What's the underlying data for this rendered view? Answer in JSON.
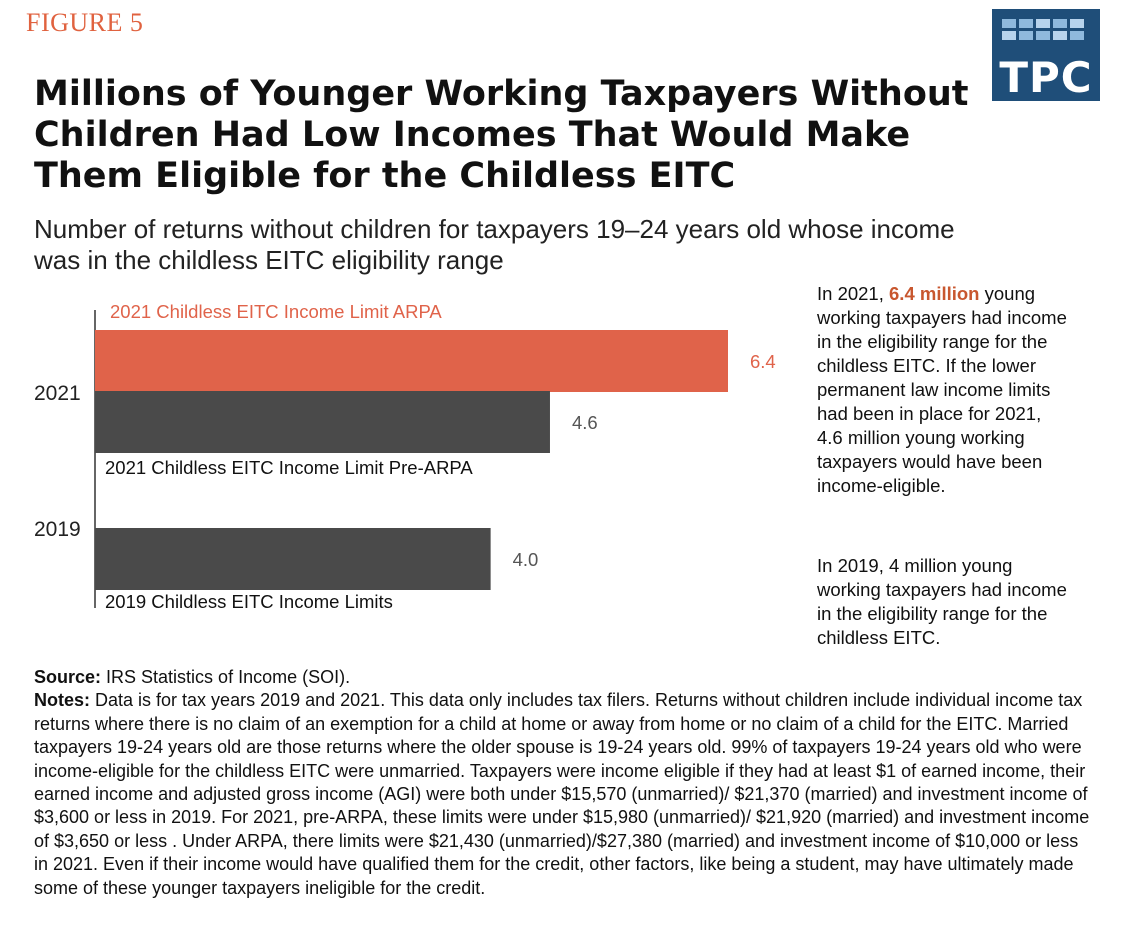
{
  "figure_label": "FIGURE 5",
  "logo": {
    "text": "TPC",
    "bg_color": "#1f4e79"
  },
  "title": "Millions of Younger Working Taxpayers Without Children Had Low Incomes That Would Make Them Eligible for the Childless EITC",
  "subtitle": "Number of returns without children for taxpayers 19–24 years old whose income was in the childless EITC eligibility range",
  "chart_data": {
    "type": "bar",
    "orientation": "horizontal",
    "categories": [
      "2021",
      "2019"
    ],
    "bars": [
      {
        "category": "2021",
        "label": "2021 Childless EITC Income Limit ARPA",
        "value": 6.4,
        "color": "#e0634a",
        "label_color": "#e0634a",
        "value_label": "6.4"
      },
      {
        "category": "2021",
        "label": "2021 Childless EITC Income Limit Pre-ARPA",
        "value": 4.6,
        "color": "#4a4a4a",
        "label_color": "#111111",
        "value_label": "4.6"
      },
      {
        "category": "2019",
        "label": "2019 Childless EITC Income Limits",
        "value": 4.0,
        "color": "#4a4a4a",
        "label_color": "#111111",
        "value_label": "4.0"
      }
    ],
    "xlim": [
      0,
      6.4
    ],
    "units": "millions of returns"
  },
  "annotations": {
    "a2021_pre": "In 2021, ",
    "a2021_highlight": "6.4 million",
    "a2021_post": " young working taxpayers had income in the eligibility range for the childless EITC. If the lower permanent law income limits had been in place for 2021, 4.6 million young working taxpayers would have been income-eligible.",
    "a2019": "In 2019, 4 million young working taxpayers had income in the eligibility range for the childless EITC."
  },
  "source_label": "Source:",
  "source_text": " IRS Statistics of Income (SOI).",
  "notes_label": "Notes:",
  "notes_text": "  Data is for tax years 2019 and 2021. This data only includes tax filers. Returns without children include individual income tax returns where there is no claim of an exemption for a child at home or away from home or no claim of a child for the EITC. Married taxpayers 19-24 years old are those returns where the older spouse is 19-24 years old. 99% of taxpayers 19-24 years old who were income-eligible for the childless EITC were unmarried. Taxpayers were income eligible if they had at least $1 of earned income, their earned income and adjusted gross income (AGI) were both under $15,570 (unmarried)/ $21,370 (married) and investment income of $3,600 or less in 2019.  For 2021, pre-ARPA, these limits were under $15,980 (unmarried)/ $21,920 (married) and investment income of $3,650 or less . Under ARPA, there limits were $21,430 (unmarried)/$27,380 (married) and investment income of $10,000 or less in 2021. Even if their income would have qualified them for the credit, other factors, like being a student, may have ultimately made some of these younger taxpayers ineligible for the credit."
}
